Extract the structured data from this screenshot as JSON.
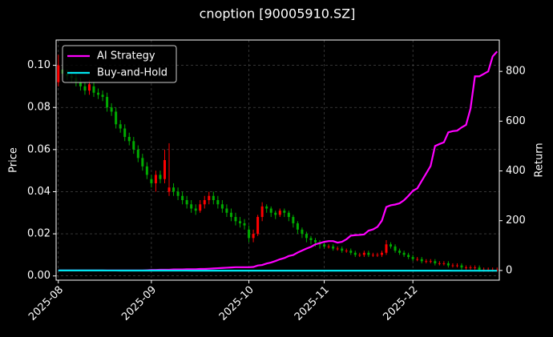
{
  "chart_data": {
    "type": "candlestick",
    "title": "cnoption [90005910.SZ]",
    "ylabel": "Price",
    "y2label": "Return",
    "categories": [
      "2025-08",
      null,
      null,
      null,
      null,
      null,
      null,
      null,
      null,
      null,
      null,
      null,
      null,
      null,
      null,
      null,
      null,
      null,
      null,
      null,
      null,
      "2025-09",
      null,
      null,
      null,
      null,
      null,
      null,
      null,
      null,
      null,
      null,
      null,
      null,
      null,
      null,
      null,
      null,
      null,
      null,
      null,
      null,
      null,
      "2025-10",
      null,
      null,
      null,
      null,
      null,
      null,
      null,
      null,
      null,
      null,
      null,
      null,
      null,
      null,
      null,
      null,
      "2025-11",
      null,
      null,
      null,
      null,
      null,
      null,
      null,
      null,
      null,
      null,
      null,
      null,
      null,
      null,
      null,
      null,
      null,
      null,
      null,
      "2025-12",
      null,
      null,
      null,
      null,
      null,
      null,
      null,
      null,
      null,
      null,
      null,
      null,
      null,
      null,
      null,
      null,
      null,
      null,
      null
    ],
    "open": [
      0.092,
      0.098,
      0.096,
      0.095,
      0.094,
      0.092,
      0.09,
      0.088,
      0.09,
      0.087,
      0.086,
      0.085,
      0.08,
      0.078,
      0.072,
      0.07,
      0.066,
      0.064,
      0.06,
      0.056,
      0.052,
      0.046,
      0.044,
      0.048,
      0.046,
      0.04,
      0.042,
      0.04,
      0.038,
      0.036,
      0.034,
      0.032,
      0.031,
      0.034,
      0.036,
      0.038,
      0.036,
      0.034,
      0.032,
      0.03,
      0.028,
      0.026,
      0.025,
      0.022,
      0.018,
      0.02,
      0.028,
      0.033,
      0.032,
      0.03,
      0.029,
      0.031,
      0.03,
      0.028,
      0.025,
      0.022,
      0.02,
      0.018,
      0.017,
      0.016,
      0.015,
      0.014,
      0.014,
      0.013,
      0.013,
      0.012,
      0.012,
      0.011,
      0.01,
      0.01,
      0.011,
      0.01,
      0.01,
      0.01,
      0.011,
      0.015,
      0.014,
      0.012,
      0.011,
      0.01,
      0.009,
      0.008,
      0.008,
      0.007,
      0.007,
      0.007,
      0.006,
      0.006,
      0.006,
      0.005,
      0.005,
      0.005,
      0.004,
      0.004,
      0.004,
      0.004,
      0.003,
      0.003,
      0.003,
      0.003
    ],
    "high": [
      0.105,
      0.1,
      0.098,
      0.097,
      0.096,
      0.094,
      0.092,
      0.093,
      0.092,
      0.089,
      0.088,
      0.087,
      0.082,
      0.08,
      0.074,
      0.072,
      0.068,
      0.066,
      0.062,
      0.058,
      0.054,
      0.048,
      0.05,
      0.05,
      0.06,
      0.063,
      0.044,
      0.042,
      0.04,
      0.038,
      0.036,
      0.034,
      0.036,
      0.038,
      0.04,
      0.04,
      0.038,
      0.036,
      0.034,
      0.032,
      0.03,
      0.028,
      0.027,
      0.024,
      0.022,
      0.029,
      0.035,
      0.034,
      0.033,
      0.031,
      0.032,
      0.032,
      0.031,
      0.029,
      0.026,
      0.023,
      0.021,
      0.019,
      0.018,
      0.017,
      0.016,
      0.015,
      0.015,
      0.014,
      0.014,
      0.013,
      0.013,
      0.012,
      0.011,
      0.012,
      0.012,
      0.011,
      0.011,
      0.012,
      0.017,
      0.016,
      0.015,
      0.013,
      0.012,
      0.011,
      0.01,
      0.009,
      0.009,
      0.008,
      0.008,
      0.008,
      0.007,
      0.007,
      0.007,
      0.006,
      0.006,
      0.006,
      0.005,
      0.005,
      0.005,
      0.005,
      0.004,
      0.004,
      0.004,
      0.004
    ],
    "low": [
      0.09,
      0.094,
      0.093,
      0.092,
      0.09,
      0.088,
      0.086,
      0.086,
      0.085,
      0.084,
      0.083,
      0.078,
      0.076,
      0.07,
      0.068,
      0.064,
      0.062,
      0.058,
      0.054,
      0.05,
      0.046,
      0.042,
      0.04,
      0.044,
      0.044,
      0.038,
      0.038,
      0.036,
      0.034,
      0.032,
      0.03,
      0.029,
      0.03,
      0.032,
      0.034,
      0.034,
      0.032,
      0.03,
      0.028,
      0.026,
      0.024,
      0.023,
      0.022,
      0.016,
      0.016,
      0.019,
      0.026,
      0.03,
      0.028,
      0.027,
      0.028,
      0.028,
      0.026,
      0.023,
      0.02,
      0.018,
      0.016,
      0.015,
      0.014,
      0.013,
      0.013,
      0.013,
      0.012,
      0.012,
      0.011,
      0.011,
      0.01,
      0.009,
      0.009,
      0.009,
      0.009,
      0.009,
      0.009,
      0.009,
      0.01,
      0.013,
      0.011,
      0.01,
      0.009,
      0.008,
      0.007,
      0.007,
      0.006,
      0.006,
      0.006,
      0.005,
      0.005,
      0.005,
      0.004,
      0.004,
      0.004,
      0.003,
      0.003,
      0.003,
      0.003,
      0.002,
      0.002,
      0.002,
      0.002,
      0.002
    ],
    "close": [
      0.1,
      0.096,
      0.095,
      0.094,
      0.092,
      0.09,
      0.088,
      0.091,
      0.087,
      0.086,
      0.085,
      0.08,
      0.078,
      0.072,
      0.07,
      0.066,
      0.064,
      0.06,
      0.056,
      0.052,
      0.048,
      0.044,
      0.048,
      0.046,
      0.055,
      0.042,
      0.04,
      0.038,
      0.036,
      0.034,
      0.032,
      0.031,
      0.034,
      0.036,
      0.038,
      0.036,
      0.034,
      0.032,
      0.03,
      0.028,
      0.026,
      0.025,
      0.024,
      0.018,
      0.02,
      0.028,
      0.033,
      0.032,
      0.03,
      0.029,
      0.031,
      0.03,
      0.028,
      0.025,
      0.022,
      0.02,
      0.018,
      0.017,
      0.016,
      0.015,
      0.014,
      0.014,
      0.013,
      0.013,
      0.012,
      0.012,
      0.011,
      0.01,
      0.01,
      0.011,
      0.01,
      0.01,
      0.01,
      0.011,
      0.015,
      0.014,
      0.012,
      0.011,
      0.01,
      0.009,
      0.008,
      0.008,
      0.007,
      0.007,
      0.007,
      0.006,
      0.006,
      0.006,
      0.005,
      0.005,
      0.005,
      0.004,
      0.004,
      0.004,
      0.004,
      0.003,
      0.003,
      0.003,
      0.003,
      0.003
    ],
    "up_color": "#ff0000",
    "down_color": "#00aa00",
    "series": [
      {
        "name": "AI Strategy",
        "color": "#ff00ff",
        "axis": "y2",
        "values": [
          0,
          0,
          0,
          0,
          0,
          0,
          0,
          0,
          0,
          0,
          0,
          0,
          0,
          0,
          0,
          0,
          0,
          0,
          0,
          0,
          1,
          2,
          2,
          3,
          3,
          3,
          4,
          4,
          4,
          5,
          5,
          5,
          6,
          6,
          7,
          8,
          9,
          10,
          11,
          12,
          13,
          13,
          13,
          13,
          14,
          20,
          22,
          28,
          32,
          38,
          45,
          50,
          58,
          62,
          72,
          80,
          88,
          95,
          105,
          110,
          115,
          118,
          118,
          112,
          115,
          125,
          140,
          142,
          143,
          145,
          160,
          165,
          175,
          200,
          255,
          262,
          265,
          270,
          282,
          300,
          320,
          330,
          360,
          390,
          420,
          500,
          508,
          515,
          555,
          560,
          562,
          575,
          585,
          650,
          780,
          780,
          790,
          800,
          860,
          880
        ]
      },
      {
        "name": "Buy-and-Hold",
        "color": "#00e5ee",
        "axis": "y2",
        "values": [
          0,
          -0.1,
          -0.1,
          -0.1,
          -0.1,
          -0.1,
          -0.1,
          -0.1,
          -0.1,
          -0.1,
          -0.1,
          -0.2,
          -0.2,
          -0.2,
          -0.3,
          -0.3,
          -0.3,
          -0.4,
          -0.4,
          -0.4,
          -0.5,
          -0.5,
          -0.5,
          -0.5,
          -0.5,
          -0.6,
          -0.6,
          -0.6,
          -0.6,
          -0.6,
          -0.7,
          -0.7,
          -0.7,
          -0.7,
          -0.7,
          -0.7,
          -0.7,
          -0.7,
          -0.7,
          -0.7,
          -0.7,
          -0.7,
          -0.8,
          -0.8,
          -0.8,
          -0.7,
          -0.7,
          -0.7,
          -0.7,
          -0.7,
          -0.7,
          -0.7,
          -0.7,
          -0.7,
          -0.8,
          -0.8,
          -0.8,
          -0.8,
          -0.8,
          -0.8,
          -0.8,
          -0.9,
          -0.9,
          -0.9,
          -0.9,
          -0.9,
          -0.9,
          -0.9,
          -0.9,
          -0.9,
          -0.9,
          -0.9,
          -0.9,
          -0.9,
          -0.9,
          -0.9,
          -0.9,
          -0.9,
          -0.9,
          -0.9,
          -0.9,
          -0.9,
          -0.9,
          -0.9,
          -0.9,
          -0.9,
          -0.9,
          -0.9,
          -0.9,
          -1,
          -1,
          -1,
          -1,
          -1,
          -1,
          -1,
          -1,
          -1,
          -1,
          -1
        ]
      }
    ],
    "ylim": [
      -0.002,
      0.112
    ],
    "yticks": [
      {
        "value": 0,
        "label": "0.00"
      },
      {
        "value": 0.02,
        "label": "0.02"
      },
      {
        "value": 0.04,
        "label": "0.04"
      },
      {
        "value": 0.06,
        "label": "0.06"
      },
      {
        "value": 0.08,
        "label": "0.08"
      },
      {
        "value": 0.1,
        "label": "0.10"
      }
    ],
    "y2lim": [
      -39,
      926
    ],
    "y2ticks": [
      0,
      200,
      400,
      600,
      800
    ],
    "grid": true,
    "legend": "upper-left"
  }
}
